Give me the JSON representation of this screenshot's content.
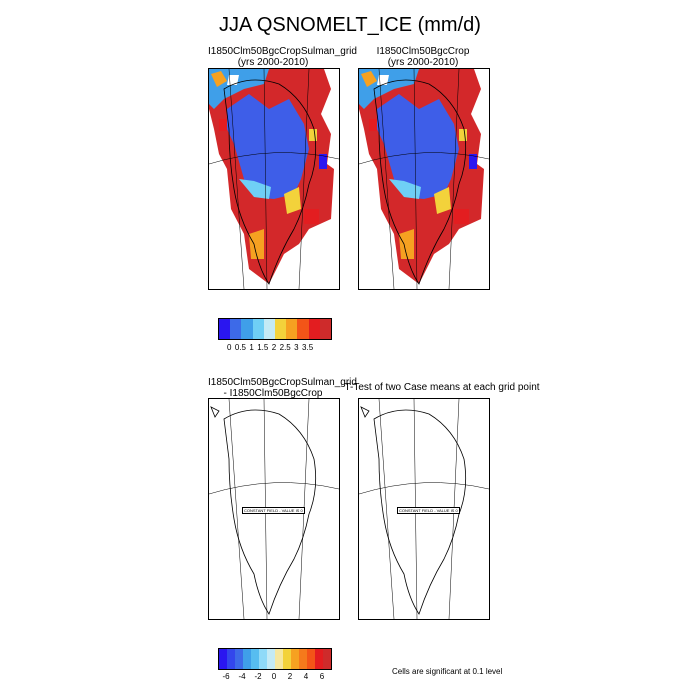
{
  "title": "JJA QSNOMELT_ICE (mm/d)",
  "panels": [
    {
      "title_line1": "I1850Clm50BgcCropSulman_grid",
      "title_line2": "(yrs 2000-2010)"
    },
    {
      "title_line1": "I1850Clm50BgcCrop",
      "title_line2": "(yrs 2000-2010)"
    },
    {
      "title_line1": "I1850Clm50BgcCropSulman_grid",
      "title_line2": "- I1850Clm50BgcCrop"
    },
    {
      "title_line1": "T-Test of two Case means at each grid point",
      "title_line2": ""
    }
  ],
  "constant_labels": [
    "CONSTANT FIELD - VALUE IS 0",
    "CONSTANT FIELD - VALUE IS 0"
  ],
  "colorbar_top": {
    "ticks": [
      "0",
      "0.5",
      "1",
      "1.5",
      "2",
      "2.5",
      "3",
      "3.5"
    ],
    "colors": [
      "#2a16f0",
      "#3d6ae8",
      "#3f9fe9",
      "#6fcff5",
      "#c4eaf5",
      "#f3d23b",
      "#f6a121",
      "#f35518",
      "#e31d20",
      "#ce2b2b"
    ]
  },
  "colorbar_bottom": {
    "ticks": [
      "-6",
      "-4",
      "-2",
      "0",
      "2",
      "4",
      "6"
    ],
    "colors": [
      "#2a16f0",
      "#3346ec",
      "#3d6ae8",
      "#3f9fe9",
      "#57bdf0",
      "#8fdaf8",
      "#c4eaf5",
      "#f6e7a0",
      "#f3d23b",
      "#f6a121",
      "#f57a1c",
      "#f35518",
      "#e31d20",
      "#ce2b2b"
    ]
  },
  "significance_note": "Cells are significant at 0.1 level"
}
